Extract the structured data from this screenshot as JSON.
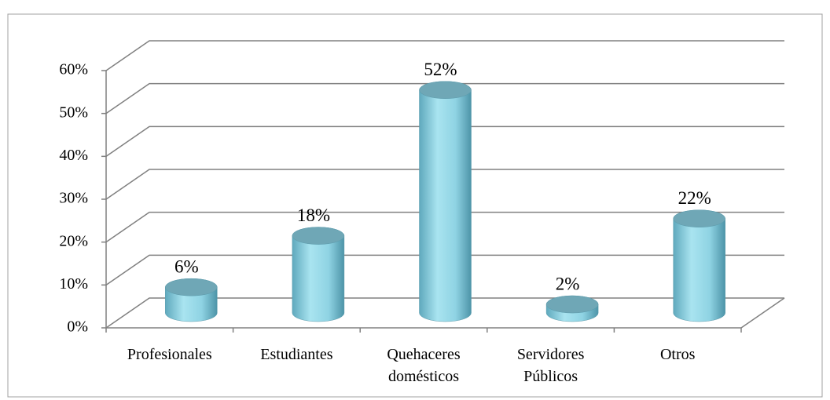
{
  "chart_data": {
    "type": "bar3d",
    "categories": [
      "Profesionales",
      "Estudiantes",
      "Quehaceres domésticos",
      "Servidores Públicos",
      "Otros"
    ],
    "values": [
      6,
      18,
      52,
      2,
      22
    ],
    "value_labels": [
      "6%",
      "18%",
      "52%",
      "2%",
      "22%"
    ],
    "color": "#8fd3e3",
    "ylim": [
      0,
      60
    ],
    "yticks": [
      {
        "value": 0,
        "label": "0%"
      },
      {
        "value": 10,
        "label": "10%"
      },
      {
        "value": 20,
        "label": "20%"
      },
      {
        "value": 30,
        "label": "30%"
      },
      {
        "value": 40,
        "label": "40%"
      },
      {
        "value": 50,
        "label": "50%"
      },
      {
        "value": 60,
        "label": "60%"
      }
    ],
    "grid": true
  }
}
